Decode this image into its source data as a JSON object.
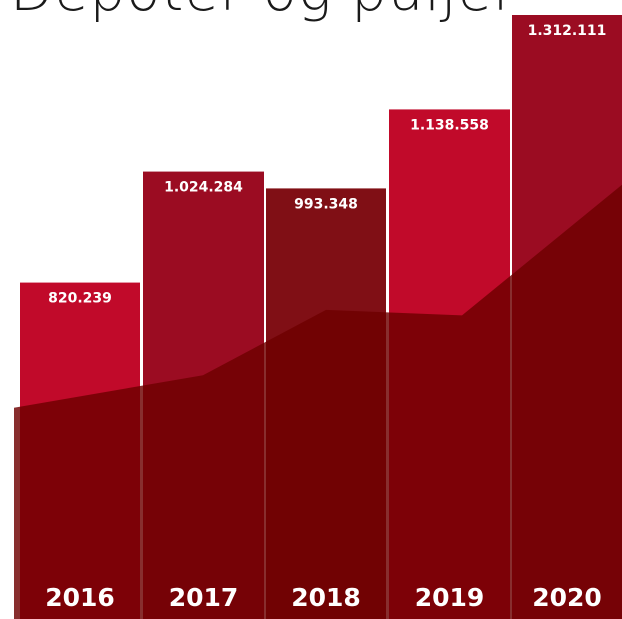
{
  "title": "Depoter og puljer",
  "chart_data": {
    "type": "bar",
    "title": "Depoter og puljer",
    "xlabel": "",
    "ylabel": "",
    "categories": [
      "2016",
      "2017",
      "2018",
      "2019",
      "2020"
    ],
    "values": [
      820239,
      1024284,
      993348,
      1138558,
      1312111
    ],
    "value_labels": [
      "820.239",
      "1.024.284",
      "993.348",
      "1.138.558",
      "1.312.111"
    ],
    "overlay_area_values": [
      590000,
      650000,
      770000,
      760000,
      1000000
    ],
    "bar_colors": [
      "#c10a2a",
      "#9b0c22",
      "#800f15",
      "#c10a2a",
      "#9b0c22"
    ],
    "overlay_color": "#6e0000",
    "grid": false,
    "legend": "none"
  }
}
